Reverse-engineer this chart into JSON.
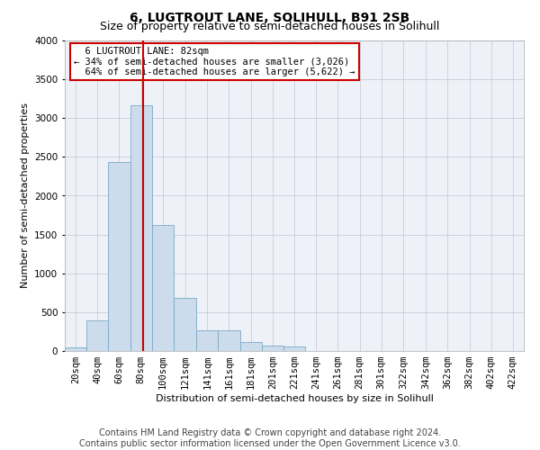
{
  "title": "6, LUGTROUT LANE, SOLIHULL, B91 2SB",
  "subtitle": "Size of property relative to semi-detached houses in Solihull",
  "xlabel": "Distribution of semi-detached houses by size in Solihull",
  "ylabel": "Number of semi-detached properties",
  "footer_line1": "Contains HM Land Registry data © Crown copyright and database right 2024.",
  "footer_line2": "Contains public sector information licensed under the Open Government Licence v3.0.",
  "annotation_title": "6 LUGTROUT LANE: 82sqm",
  "annotation_line1": "← 34% of semi-detached houses are smaller (3,026)",
  "annotation_line2": "64% of semi-detached houses are larger (5,622) →",
  "property_size": 82,
  "bin_edges": [
    10,
    30,
    50,
    70,
    90,
    110,
    131,
    151,
    171,
    191,
    211,
    231,
    251,
    271,
    291,
    311,
    332,
    352,
    372,
    392,
    412,
    432
  ],
  "bin_labels": [
    "20sqm",
    "40sqm",
    "60sqm",
    "80sqm",
    "100sqm",
    "121sqm",
    "141sqm",
    "161sqm",
    "181sqm",
    "201sqm",
    "221sqm",
    "241sqm",
    "261sqm",
    "281sqm",
    "301sqm",
    "322sqm",
    "342sqm",
    "362sqm",
    "382sqm",
    "402sqm",
    "422sqm"
  ],
  "bar_values": [
    50,
    390,
    2430,
    3160,
    1620,
    680,
    270,
    270,
    120,
    70,
    60,
    0,
    0,
    0,
    0,
    0,
    0,
    0,
    0,
    0,
    0
  ],
  "bar_color": "#ccdcec",
  "bar_edge_color": "#7aaac8",
  "grid_color": "#c8ccd8",
  "red_line_color": "#cc0000",
  "annotation_box_color": "#ffffff",
  "annotation_box_edge": "#cc0000",
  "ylim": [
    0,
    4000
  ],
  "yticks": [
    0,
    500,
    1000,
    1500,
    2000,
    2500,
    3000,
    3500,
    4000
  ],
  "title_fontsize": 10,
  "subtitle_fontsize": 9,
  "axis_label_fontsize": 8,
  "tick_fontsize": 7.5,
  "annotation_fontsize": 7.5,
  "footer_fontsize": 7,
  "bg_color": "#eef2f8"
}
